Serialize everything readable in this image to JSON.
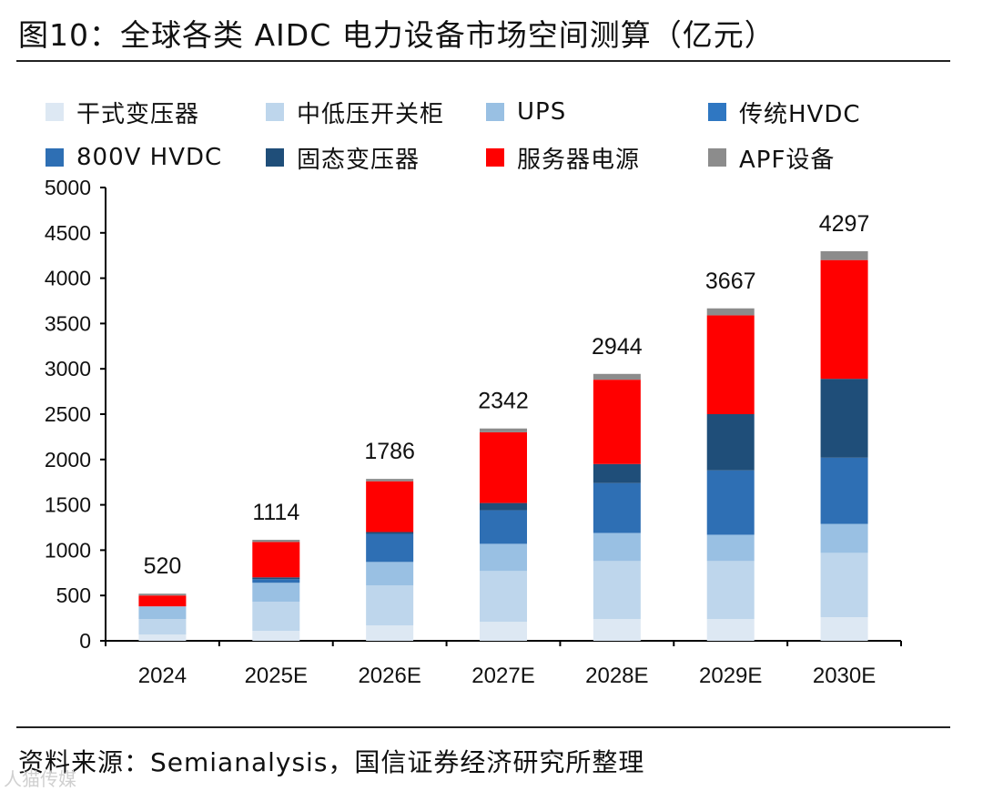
{
  "header": {
    "title": "图10：全球各类 AIDC 电力设备市场空间测算（亿元）"
  },
  "footer": {
    "source": "资料来源：Semianalysis，国信证券经济研究所整理",
    "watermark": "人猫传媒"
  },
  "chart_data": {
    "type": "bar",
    "stacked": true,
    "title": "全球各类 AIDC 电力设备市场空间测算（亿元）",
    "unit": "亿元",
    "categories": [
      "2024",
      "2025E",
      "2026E",
      "2027E",
      "2028E",
      "2029E",
      "2030E"
    ],
    "ylim": [
      0,
      5000
    ],
    "yticks": [
      0,
      500,
      1000,
      1500,
      2000,
      2500,
      3000,
      3500,
      4000,
      4500,
      5000
    ],
    "totals": [
      520,
      1114,
      1786,
      2342,
      2944,
      3667,
      4297
    ],
    "series": [
      {
        "name": "干式变压器",
        "color": "#dde8f3",
        "values": [
          70,
          110,
          170,
          210,
          240,
          240,
          260
        ]
      },
      {
        "name": "中低压开关柜",
        "color": "#bed6ec",
        "values": [
          170,
          320,
          440,
          560,
          640,
          640,
          710
        ]
      },
      {
        "name": "UPS",
        "color": "#99c0e3",
        "values": [
          140,
          210,
          260,
          300,
          310,
          290,
          320
        ]
      },
      {
        "name": "传统HVDC",
        "color": "#2f77c2",
        "values": [
          0,
          0,
          0,
          0,
          0,
          0,
          0
        ]
      },
      {
        "name": "800V HVDC",
        "color": "#2e6fb4",
        "values": [
          0,
          40,
          310,
          370,
          550,
          710,
          730
        ]
      },
      {
        "name": "固态变压器",
        "color": "#1f4e79",
        "values": [
          0,
          20,
          20,
          80,
          210,
          620,
          870
        ]
      },
      {
        "name": "服务器电源",
        "color": "#ff0000",
        "values": [
          120,
          390,
          560,
          780,
          930,
          1090,
          1310
        ]
      },
      {
        "name": "APF设备",
        "color": "#8c8c8c",
        "values": [
          20,
          24,
          26,
          42,
          64,
          77,
          97
        ]
      }
    ]
  }
}
